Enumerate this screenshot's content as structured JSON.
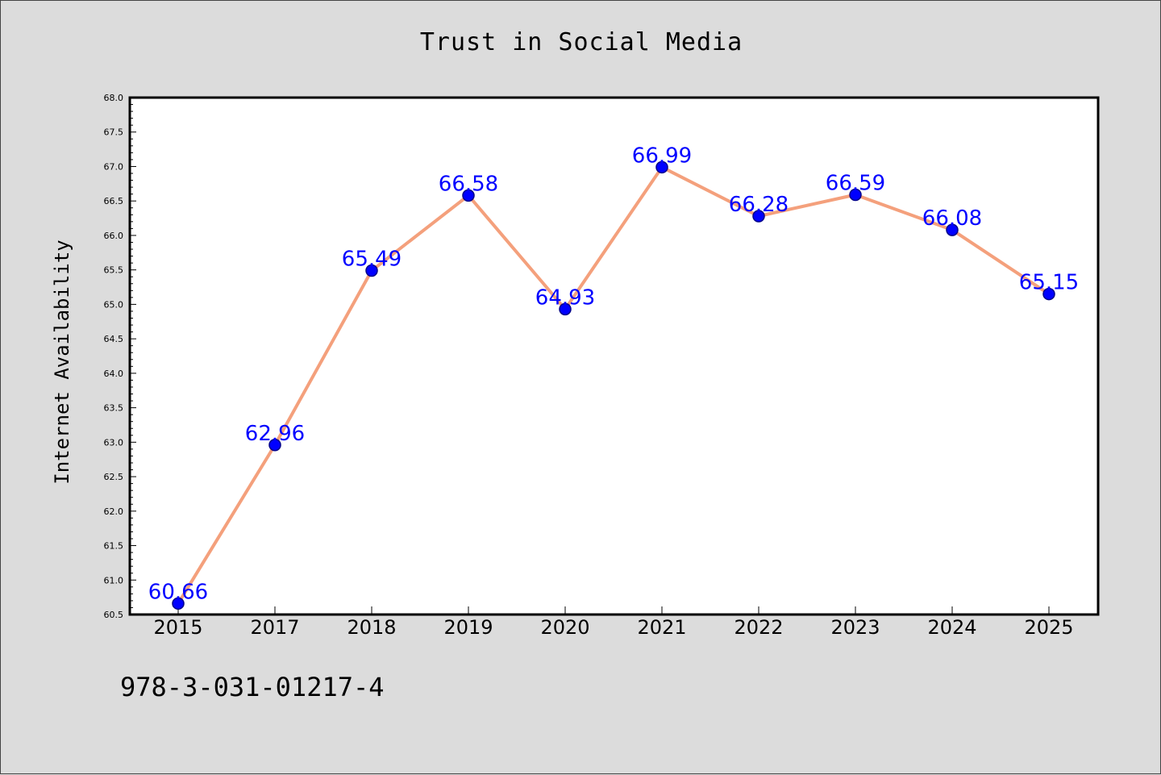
{
  "chart_data": {
    "type": "line",
    "title": "Trust in Social Media",
    "xlabel": "",
    "ylabel": "Internet Availability",
    "categories": [
      "2015",
      "2017",
      "2018",
      "2019",
      "2020",
      "2021",
      "2022",
      "2023",
      "2024",
      "2025"
    ],
    "series": [
      {
        "values": [
          60.66,
          62.96,
          65.49,
          66.58,
          64.93,
          66.99,
          66.28,
          66.59,
          66.08,
          65.15
        ],
        "labels": [
          "60.66",
          "62.96",
          "65.49",
          "66.58",
          "64.93",
          "66.99",
          "66.28",
          "66.59",
          "66.08",
          "65.15"
        ]
      }
    ],
    "ylim": [
      60.5,
      68.0
    ],
    "yticks": [
      "60.5",
      "61.0",
      "61.5",
      "62.0",
      "62.5",
      "63.0",
      "63.5",
      "64.0",
      "64.5",
      "65.0",
      "65.5",
      "66.0",
      "66.5",
      "67.0",
      "67.5",
      "68.0"
    ],
    "grid": false,
    "colors": {
      "line": "#f4a07c",
      "marker": "#0000ff",
      "marker_edge": "#00008b",
      "label": "#0000ff",
      "background": "#dcdcdc",
      "plot_background": "#ffffff"
    }
  },
  "footer": {
    "code": "978-3-031-01217-4"
  }
}
